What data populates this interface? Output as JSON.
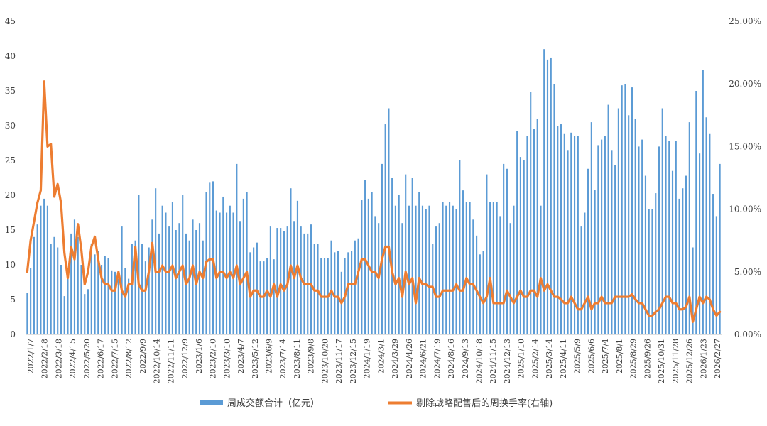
{
  "chart_data": {
    "type": "bar+line",
    "title": "",
    "xlabel": "",
    "left_axis": {
      "ylim": [
        0,
        45
      ],
      "ticks": [
        "0",
        "5",
        "10",
        "15",
        "20",
        "25",
        "30",
        "35",
        "40",
        "45"
      ]
    },
    "right_axis": {
      "ylim": [
        0,
        25
      ],
      "ticks": [
        "0.00%",
        "5.00%",
        "10.00%",
        "15.00%",
        "20.00%",
        "25.00%"
      ]
    },
    "x_tick_labels": [
      "2022/1/7",
      "2022/2/18",
      "2022/3/18",
      "2022/4/15",
      "2022/5/20",
      "2022/6/17",
      "2022/7/15",
      "2022/8/12",
      "2022/9/9",
      "2022/10/14",
      "2022/11/11",
      "2022/12/9",
      "2023/1/6",
      "2023/2/10",
      "2023/3/10",
      "2023/4/7",
      "2023/5/12",
      "2023/6/9",
      "2023/7/14",
      "2023/8/11",
      "2023/9/8",
      "2023/10/20",
      "2023/11/17",
      "2023/12/15",
      "2024/1/19",
      "2024/3/1",
      "2024/3/29",
      "2024/4/26",
      "2024/6/21",
      "2024/7/19",
      "2024/8/16",
      "2024/9/13",
      "2024/10/18",
      "2024/11/15",
      "2024/12/13",
      "2025/1/10",
      "2025/2/14",
      "2025/3/14",
      "2025/4/11",
      "2025/5/9",
      "2025/6/6",
      "2025/7/4",
      "2025/8/1",
      "2025/8/29",
      "2025/9/26",
      "2025/10/31",
      "2025/11/28",
      "2025/12/26",
      "2026/1/23",
      "2026/2/27"
    ],
    "series": [
      {
        "name": "周成交额合计（亿元）",
        "type": "bar",
        "axis": "left",
        "color": "#5B9BD5",
        "values": [
          6,
          9.5,
          14,
          15.8,
          18.5,
          19.5,
          18.5,
          13,
          14,
          12.5,
          10,
          5.5,
          8,
          14.5,
          16.5,
          14,
          10,
          5.8,
          6.5,
          13,
          11.5,
          12,
          10,
          11.3,
          11,
          9.2,
          9,
          8,
          15.5,
          9.5,
          8,
          13,
          13.5,
          20,
          13,
          10.5,
          12.5,
          16.5,
          21,
          14.5,
          18.5,
          17.5,
          15.5,
          19,
          15,
          16,
          20,
          14.5,
          13.5,
          16.5,
          15,
          16,
          13.5,
          20.5,
          21.8,
          22,
          17.8,
          17.5,
          19.8,
          17.5,
          18.5,
          17.5,
          24.5,
          16.3,
          19.5,
          20.5,
          11.8,
          12.5,
          13.2,
          10.5,
          10.5,
          11,
          15.5,
          10.8,
          15.3,
          15.3,
          14.8,
          15.5,
          21,
          16.3,
          19.2,
          15.5,
          14.5,
          14.5,
          15.8,
          13,
          13,
          11,
          11,
          11,
          13.5,
          11.8,
          12,
          9,
          11,
          11.8,
          12,
          13.5,
          13.8,
          19.3,
          22.2,
          19.5,
          20.5,
          17,
          16,
          24.5,
          30.2,
          32.5,
          22.5,
          18.5,
          20,
          16,
          23,
          18.5,
          22.5,
          18.5,
          20.5,
          18.5,
          18,
          18.5,
          13,
          15.5,
          16,
          19,
          18.5,
          19,
          18.5,
          18,
          25,
          20.7,
          19,
          19,
          16.5,
          14.2,
          11.5,
          12,
          23,
          19,
          19,
          19,
          17,
          24.5,
          23.8,
          16,
          18.5,
          29.2,
          25.5,
          25,
          28.5,
          34.8,
          29.5,
          31,
          18.5,
          41,
          39.5,
          39.8,
          36,
          30,
          30.2,
          28.8,
          26.5,
          29,
          28.5,
          28.5,
          15.5,
          17.5,
          23.8,
          30.5,
          20.8,
          27.2,
          28,
          28.5,
          33,
          26.5,
          24.3,
          32.5,
          35.8,
          36,
          31.5,
          35.5,
          31,
          27,
          28,
          22.8,
          18,
          18,
          20.3,
          27,
          32.5,
          28.5,
          27.8,
          23.5,
          27.8,
          19.5,
          21,
          22.8,
          30.5,
          12.5,
          35,
          26,
          38,
          31.2,
          28.8,
          20.2,
          17,
          24.5
        ]
      },
      {
        "name": "剔除战略配售后的周换手率(右轴)",
        "type": "line",
        "axis": "right",
        "color": "#ED7D31",
        "values": [
          5,
          7.5,
          9,
          10.5,
          11.5,
          20.2,
          15,
          15.2,
          11,
          12,
          10.5,
          6.5,
          4.5,
          7,
          6,
          8.8,
          6.8,
          4,
          5,
          7,
          7.8,
          6,
          4.5,
          4,
          4,
          3.5,
          3.5,
          5,
          3.5,
          3,
          4,
          4,
          7,
          4,
          3.5,
          3.5,
          5,
          7.3,
          5,
          5,
          5.5,
          5,
          5,
          5.5,
          4.5,
          5,
          5.5,
          4,
          4.5,
          5.5,
          4,
          5,
          4.5,
          5.8,
          6,
          6,
          4.5,
          5,
          5,
          4.5,
          5,
          4.5,
          5.5,
          4,
          4.5,
          5,
          3,
          3.5,
          3.5,
          3,
          3,
          3.5,
          3,
          4,
          3,
          4,
          3.5,
          4,
          5.5,
          4.5,
          5.5,
          4.5,
          4,
          4,
          4,
          3.5,
          3.5,
          3,
          3,
          3,
          3.5,
          3,
          3,
          2.5,
          3,
          4,
          4,
          4,
          5,
          6,
          6,
          5.5,
          5,
          5,
          4.5,
          6,
          7,
          7,
          5,
          4,
          4.5,
          3,
          5,
          4,
          4.5,
          2.5,
          4.5,
          4,
          4,
          3.8,
          3.8,
          3,
          3,
          3.5,
          3.5,
          3.5,
          3.5,
          4,
          3.5,
          3.5,
          4.5,
          4,
          4,
          3.5,
          3,
          2.5,
          3,
          4.5,
          2.5,
          2.5,
          2.5,
          2.5,
          3.5,
          3,
          2.5,
          3,
          3.5,
          3,
          3,
          3.5,
          3.5,
          3,
          4.5,
          3.5,
          4,
          3.5,
          3,
          3,
          2.8,
          2.5,
          2.5,
          3,
          2.5,
          2,
          2,
          2.5,
          3,
          2,
          2.5,
          2.5,
          3,
          2.5,
          2.5,
          2.5,
          3,
          3,
          3,
          3,
          3,
          3.2,
          2.8,
          2.5,
          2.5,
          2,
          1.5,
          1.5,
          1.8,
          2,
          2.5,
          3,
          3,
          2.5,
          2.5,
          2,
          2,
          2.2,
          3,
          1,
          2,
          3,
          2.5,
          3,
          2.8,
          2,
          1.5,
          1.8
        ]
      }
    ],
    "grid": false,
    "legend_position": "bottom"
  }
}
